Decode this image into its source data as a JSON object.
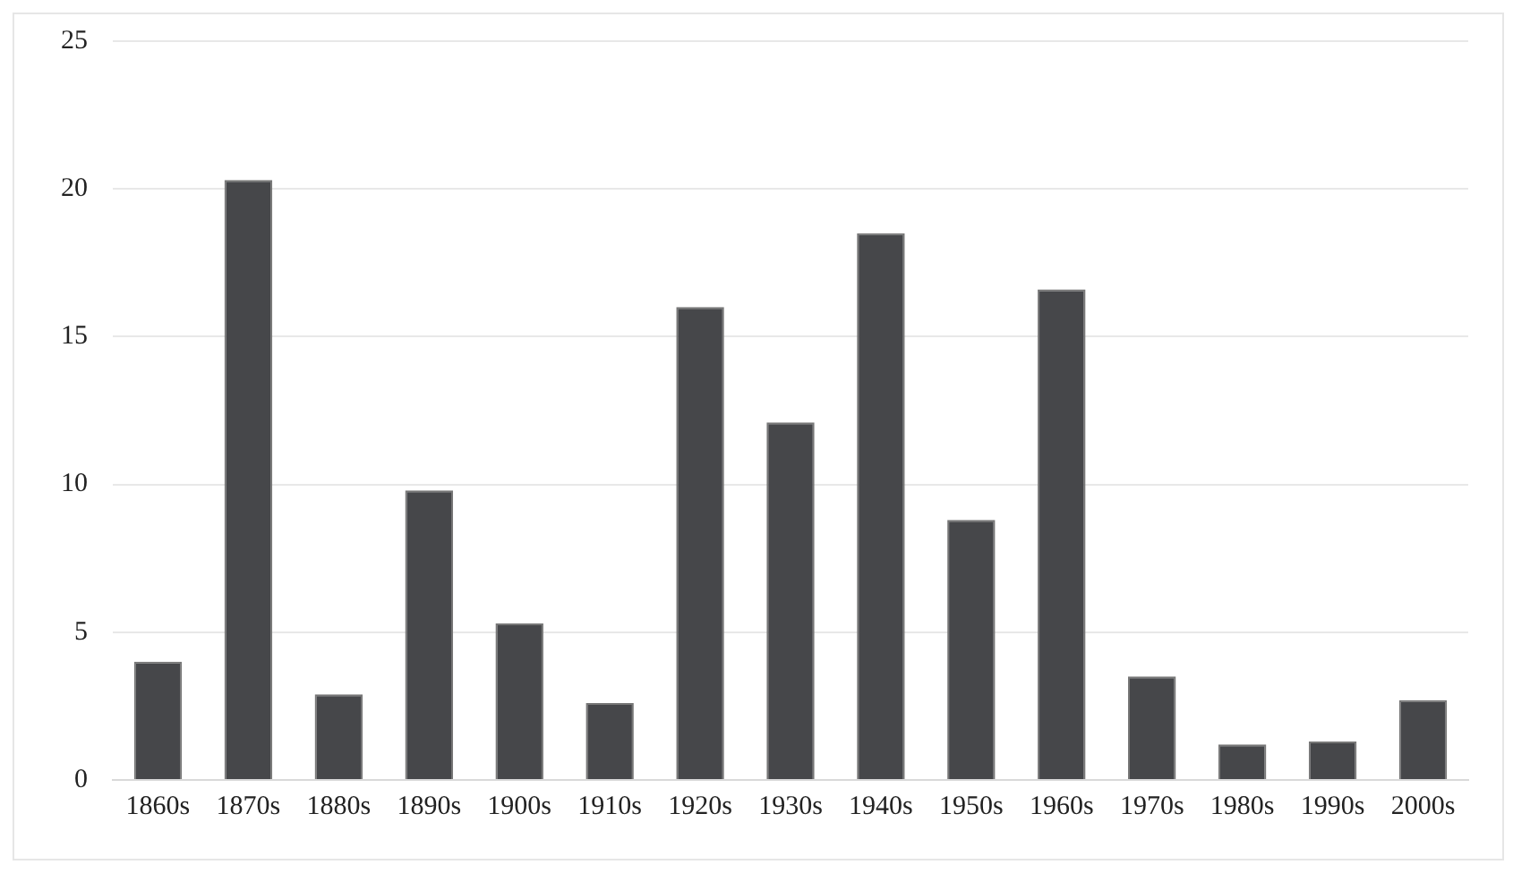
{
  "chart_data": {
    "type": "bar",
    "categories": [
      "1860s",
      "1870s",
      "1880s",
      "1890s",
      "1900s",
      "1910s",
      "1920s",
      "1930s",
      "1940s",
      "1950s",
      "1960s",
      "1970s",
      "1980s",
      "1990s",
      "2000s"
    ],
    "values": [
      4.0,
      20.3,
      2.9,
      9.8,
      5.3,
      2.6,
      16.0,
      12.1,
      18.5,
      8.8,
      16.6,
      3.5,
      1.2,
      1.3,
      2.7
    ],
    "color": "#46474a",
    "ylim": [
      0,
      25
    ],
    "yticks": [
      0,
      5,
      10,
      15,
      20,
      25
    ],
    "grid": "y",
    "legend": false
  }
}
